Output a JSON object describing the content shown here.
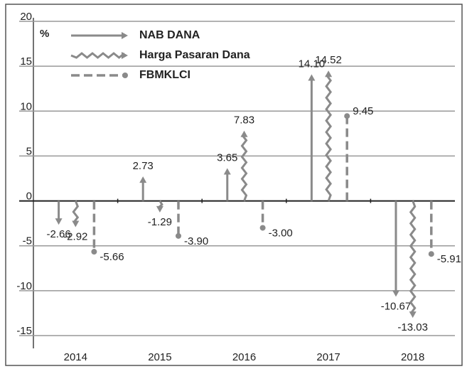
{
  "chart_data": {
    "type": "arrow",
    "y_label": "%",
    "categories": [
      "2014",
      "2015",
      "2016",
      "2017",
      "2018"
    ],
    "series": [
      {
        "name": "NAB DANA",
        "color": "#8a8a8a",
        "values": [
          -2.66,
          2.73,
          3.65,
          14.1,
          -10.67
        ],
        "value_labels": [
          "-2.66",
          "2.73",
          "3.65",
          "14.10",
          "-10.67"
        ]
      },
      {
        "name": "Harga Pasaran Dana",
        "color": "#8a8a8a",
        "values": [
          -2.92,
          -1.29,
          7.83,
          14.52,
          -13.03
        ],
        "value_labels": [
          "-2.92",
          "-1.29",
          "7.83",
          "14.52",
          "-13.03"
        ]
      },
      {
        "name": "FBMKLCI",
        "color": "#8a8a8a",
        "values": [
          -5.66,
          -3.9,
          -3.0,
          9.45,
          -5.91
        ],
        "value_labels": [
          "-5.66",
          "-3.90",
          "-3.00",
          "9.45",
          "-5.91"
        ]
      }
    ],
    "ylim": [
      -15,
      20
    ],
    "yticks": [
      20,
      15,
      10,
      5,
      0,
      -5,
      -10,
      -15
    ],
    "grid": true
  }
}
